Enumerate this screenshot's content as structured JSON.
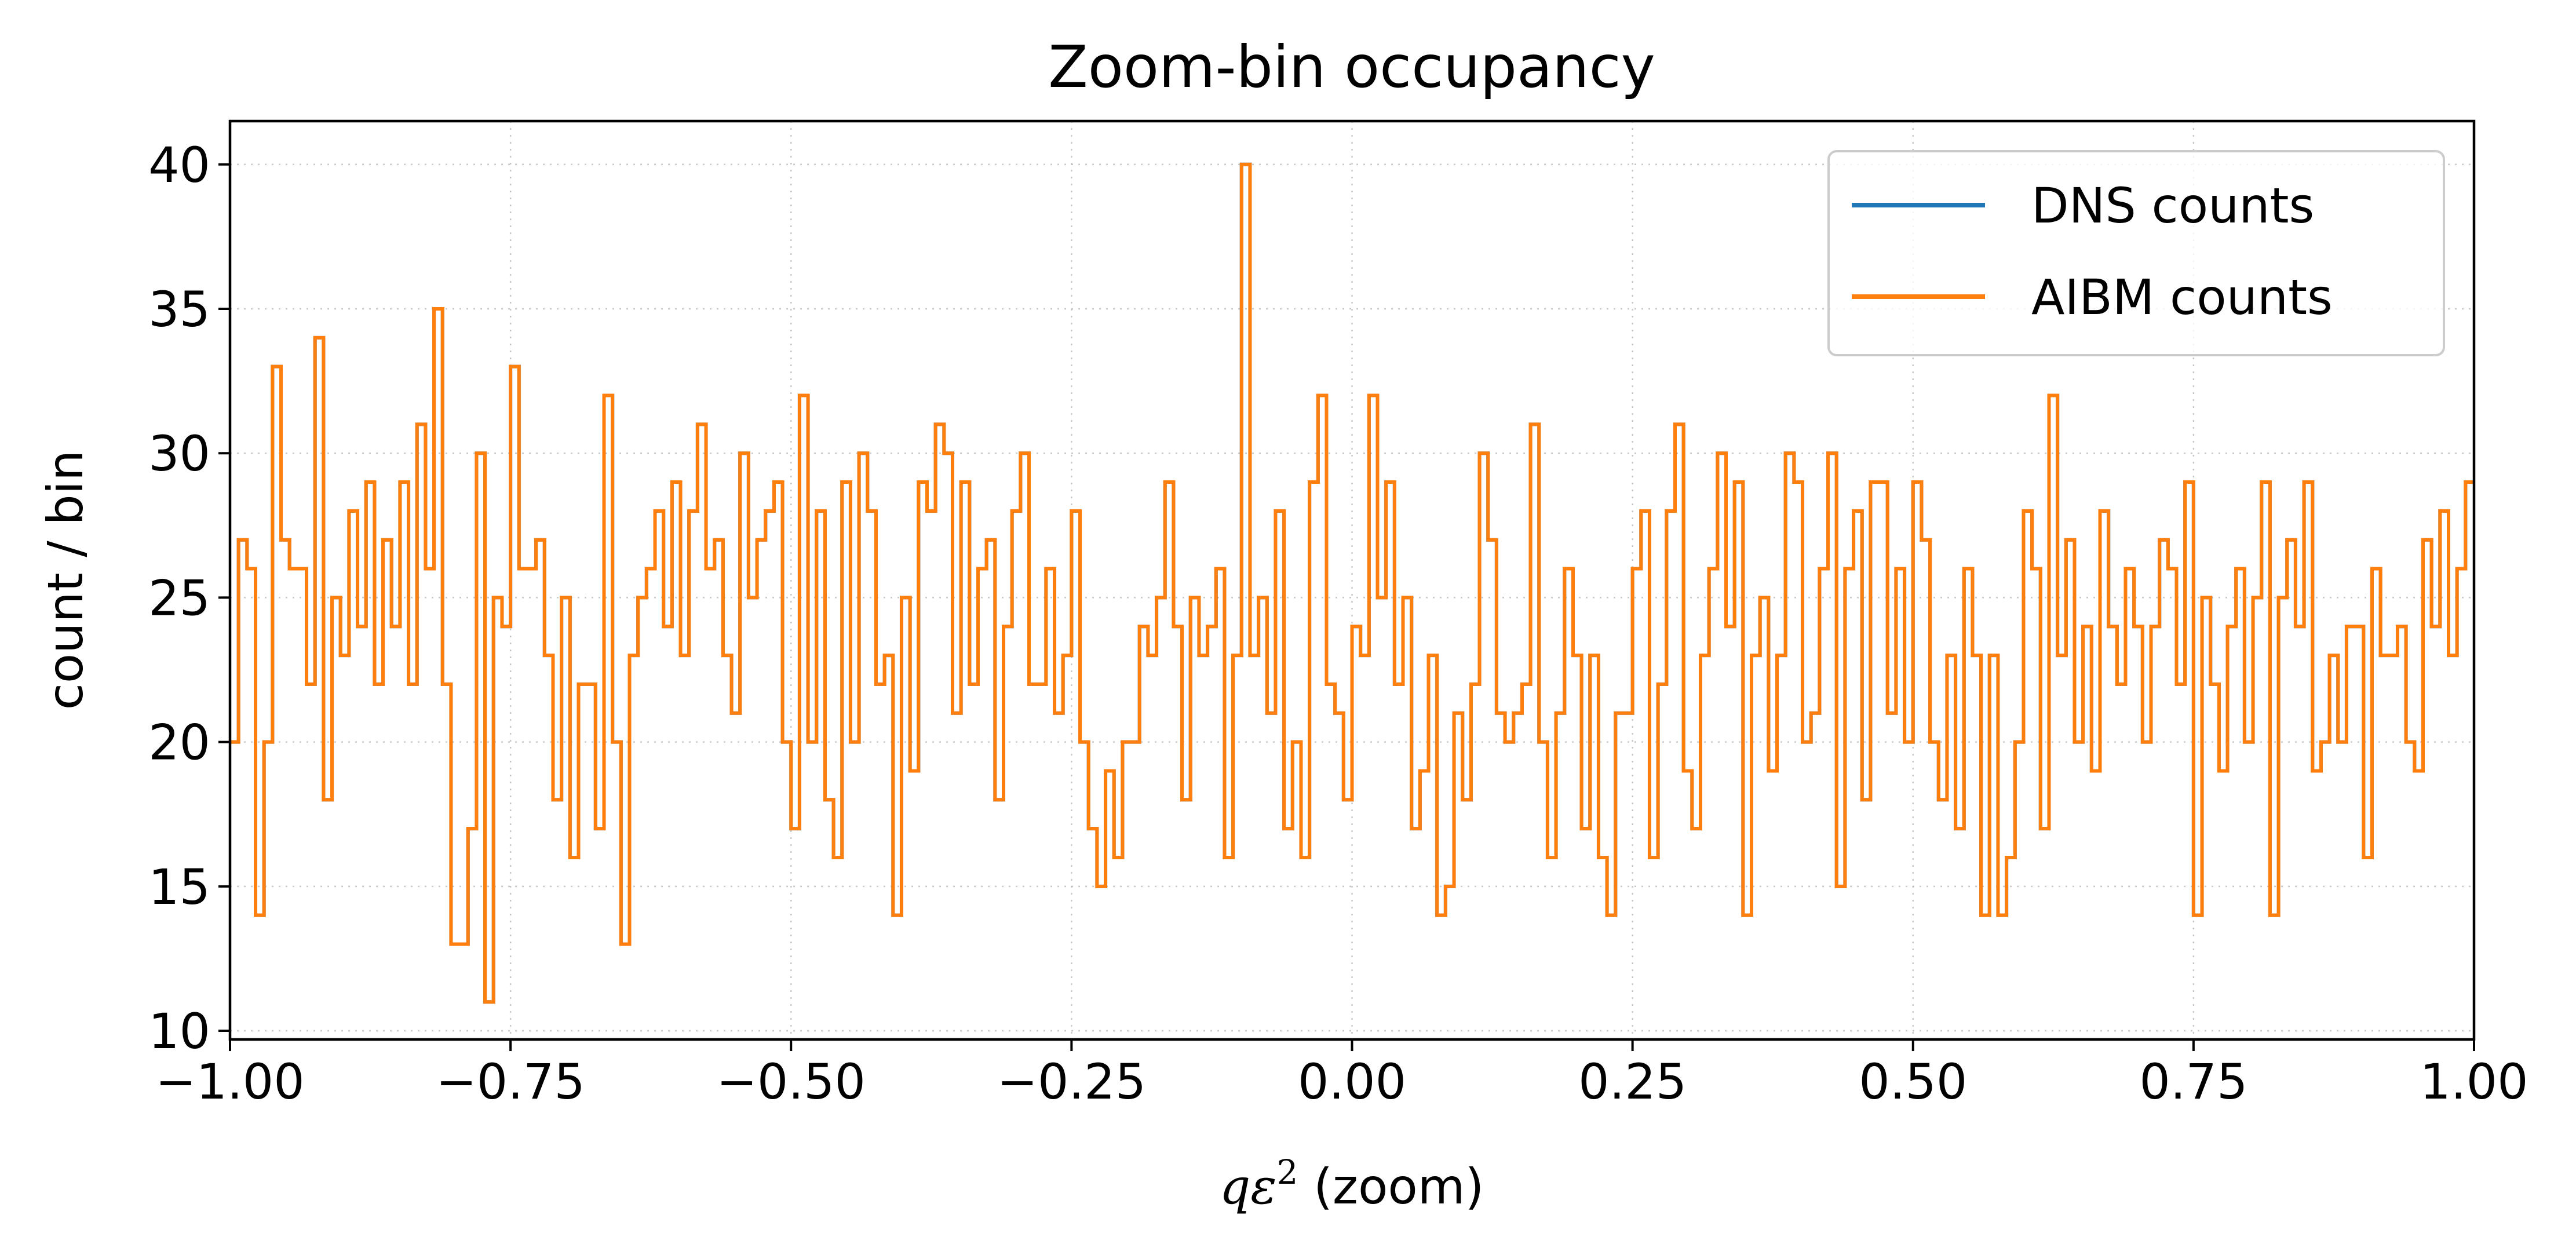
{
  "chart_data": {
    "type": "line",
    "drawstyle": "steps",
    "title": "Zoom-bin occupancy",
    "xlabel_math": "qε",
    "xlabel_sup": "2",
    "xlabel_text": " (zoom)",
    "ylabel": "count / bin",
    "xlim": [
      -1.0,
      1.0
    ],
    "ylim": [
      9.7,
      41.5
    ],
    "xticks": [
      -1.0,
      -0.75,
      -0.5,
      -0.25,
      0.0,
      0.25,
      0.5,
      0.75,
      1.0
    ],
    "xtick_labels": [
      "−1.00",
      "−0.75",
      "−0.50",
      "−0.25",
      "0.00",
      "0.25",
      "0.50",
      "0.75",
      "1.00"
    ],
    "yticks": [
      10,
      15,
      20,
      25,
      30,
      35,
      40
    ],
    "ytick_labels": [
      "10",
      "15",
      "20",
      "25",
      "30",
      "35",
      "40"
    ],
    "grid": true,
    "legend_position": "top-right",
    "bin_edges_range": [
      -1.0,
      1.0
    ],
    "series": [
      {
        "name": "DNS counts",
        "color": "#1f77b4",
        "values": [
          20,
          27,
          26,
          14,
          20,
          33,
          27,
          26,
          26,
          22,
          34,
          18,
          25,
          23,
          28,
          24,
          29,
          22,
          27,
          24,
          29,
          22,
          31,
          26,
          35,
          22,
          13,
          13,
          17,
          30,
          11,
          25,
          24,
          33,
          26,
          26,
          27,
          23,
          18,
          25,
          16,
          22,
          22,
          17,
          32,
          20,
          13,
          23,
          25,
          26,
          28,
          24,
          29,
          23,
          28,
          31,
          26,
          27,
          23,
          21,
          30,
          25,
          27,
          28,
          29,
          20,
          17,
          32,
          20,
          28,
          18,
          16,
          29,
          20,
          30,
          28,
          22,
          23,
          14,
          25,
          19,
          29,
          28,
          31,
          30,
          21,
          29,
          22,
          26,
          27,
          18,
          24,
          28,
          30,
          22,
          22,
          26,
          21,
          23,
          28,
          20,
          17,
          15,
          19,
          16,
          20,
          20,
          24,
          23,
          25,
          29,
          24,
          18,
          25,
          23,
          24,
          26,
          16,
          23,
          40,
          23,
          25,
          21,
          28,
          17,
          20,
          16,
          29,
          32,
          22,
          21,
          18,
          24,
          23,
          32,
          25,
          29,
          22,
          25,
          17,
          19,
          23,
          14,
          15,
          21,
          18,
          22,
          30,
          27,
          21,
          20,
          21,
          22,
          31,
          20,
          16,
          21,
          26,
          23,
          17,
          23,
          16,
          14,
          21,
          21,
          26,
          28,
          16,
          22,
          28,
          31,
          19,
          17,
          23,
          26,
          30,
          24,
          29,
          14,
          23,
          25,
          19,
          23,
          30,
          29,
          20,
          21,
          26,
          30,
          15,
          26,
          28,
          18,
          29,
          29,
          21,
          26,
          20,
          29,
          27,
          20,
          18,
          23,
          17,
          26,
          23,
          14,
          23,
          14,
          16,
          20,
          28,
          26,
          17,
          32,
          23,
          27,
          20,
          24,
          19,
          28,
          24,
          22,
          26,
          24,
          20,
          24,
          27,
          26,
          22,
          29,
          14,
          25,
          22,
          19,
          24,
          26,
          20,
          25,
          29,
          14,
          25,
          27,
          24,
          29,
          19,
          20,
          23,
          20,
          24,
          24,
          16,
          26,
          23,
          23,
          24,
          20,
          19,
          27,
          24,
          28,
          23,
          26,
          29
        ]
      },
      {
        "name": "AIBM counts",
        "color": "#ff7f0e",
        "values": [
          20,
          27,
          26,
          14,
          20,
          33,
          27,
          26,
          26,
          22,
          34,
          18,
          25,
          23,
          28,
          24,
          29,
          22,
          27,
          24,
          29,
          22,
          31,
          26,
          35,
          22,
          13,
          13,
          17,
          30,
          11,
          25,
          24,
          33,
          26,
          26,
          27,
          23,
          18,
          25,
          16,
          22,
          22,
          17,
          32,
          20,
          13,
          23,
          25,
          26,
          28,
          24,
          29,
          23,
          28,
          31,
          26,
          27,
          23,
          21,
          30,
          25,
          27,
          28,
          29,
          20,
          17,
          32,
          20,
          28,
          18,
          16,
          29,
          20,
          30,
          28,
          22,
          23,
          14,
          25,
          19,
          29,
          28,
          31,
          30,
          21,
          29,
          22,
          26,
          27,
          18,
          24,
          28,
          30,
          22,
          22,
          26,
          21,
          23,
          28,
          20,
          17,
          15,
          19,
          16,
          20,
          20,
          24,
          23,
          25,
          29,
          24,
          18,
          25,
          23,
          24,
          26,
          16,
          23,
          40,
          23,
          25,
          21,
          28,
          17,
          20,
          16,
          29,
          32,
          22,
          21,
          18,
          24,
          23,
          32,
          25,
          29,
          22,
          25,
          17,
          19,
          23,
          14,
          15,
          21,
          18,
          22,
          30,
          27,
          21,
          20,
          21,
          22,
          31,
          20,
          16,
          21,
          26,
          23,
          17,
          23,
          16,
          14,
          21,
          21,
          26,
          28,
          16,
          22,
          28,
          31,
          19,
          17,
          23,
          26,
          30,
          24,
          29,
          14,
          23,
          25,
          19,
          23,
          30,
          29,
          20,
          21,
          26,
          30,
          15,
          26,
          28,
          18,
          29,
          29,
          21,
          26,
          20,
          29,
          27,
          20,
          18,
          23,
          17,
          26,
          23,
          14,
          23,
          14,
          16,
          20,
          28,
          26,
          17,
          32,
          23,
          27,
          20,
          24,
          19,
          28,
          24,
          22,
          26,
          24,
          20,
          24,
          27,
          26,
          22,
          29,
          14,
          25,
          22,
          19,
          24,
          26,
          20,
          25,
          29,
          14,
          25,
          27,
          24,
          29,
          19,
          20,
          23,
          20,
          24,
          24,
          16,
          26,
          23,
          23,
          24,
          20,
          19,
          27,
          24,
          28,
          23,
          26,
          29
        ]
      }
    ]
  }
}
